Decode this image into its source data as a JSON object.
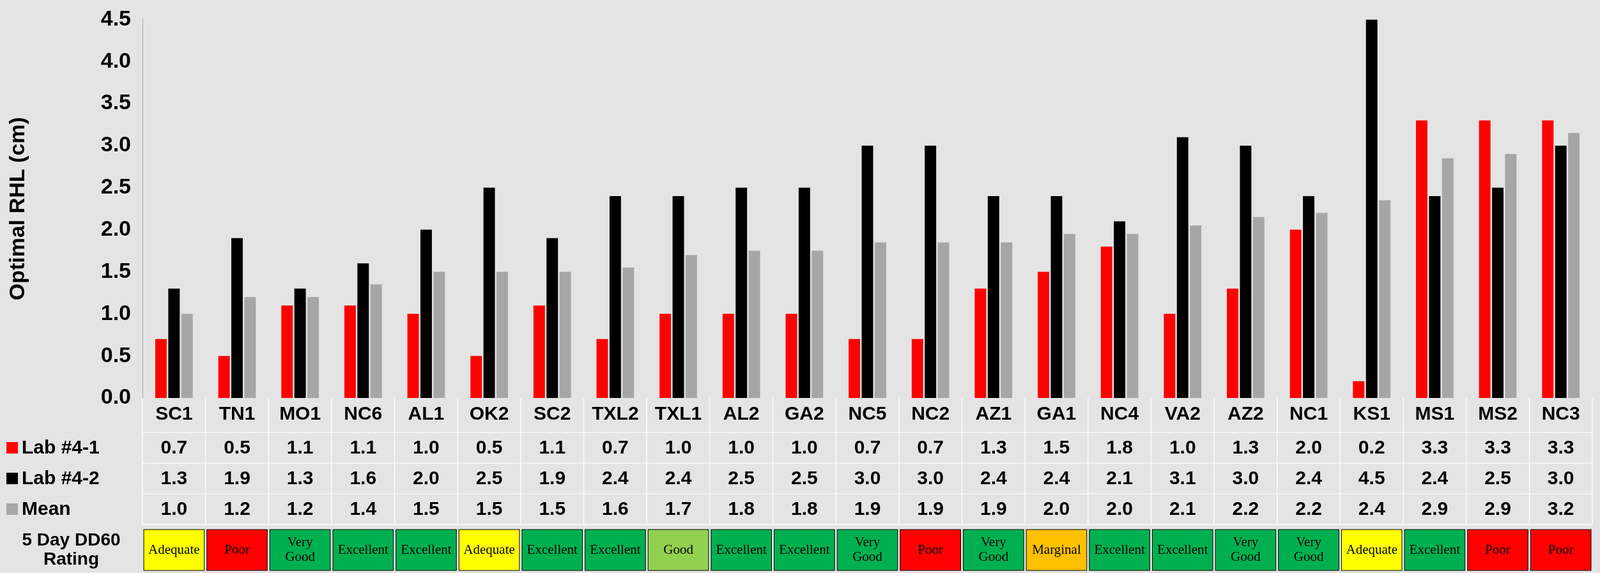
{
  "chart_data": {
    "type": "bar",
    "y_label": "Optimal RHL (cm)",
    "categories": [
      "SC1",
      "TN1",
      "MO1",
      "NC6",
      "AL1",
      "OK2",
      "SC2",
      "TXL2",
      "TXL1",
      "AL2",
      "GA2",
      "NC5",
      "NC2",
      "AZ1",
      "GA1",
      "NC4",
      "VA2",
      "AZ2",
      "NC1",
      "KS1",
      "MS1",
      "MS2",
      "NC3"
    ],
    "series": [
      {
        "name": "Lab #4-1",
        "color": "#ff0000",
        "values": [
          0.7,
          0.5,
          1.1,
          1.1,
          1.0,
          0.5,
          1.1,
          0.7,
          1.0,
          1.0,
          1.0,
          0.7,
          0.7,
          1.3,
          1.5,
          1.8,
          1.0,
          1.3,
          2.0,
          0.2,
          3.3,
          3.3,
          3.3
        ],
        "value_labels": [
          "0.7",
          "0.5",
          "1.1",
          "1.1",
          "1.0",
          "0.5",
          "1.1",
          "0.7",
          "1.0",
          "1.0",
          "1.0",
          "0.7",
          "0.7",
          "1.3",
          "1.5",
          "1.8",
          "1.0",
          "1.3",
          "2.0",
          "0.2",
          "3.3",
          "3.3",
          "3.3"
        ]
      },
      {
        "name": "Lab #4-2",
        "color": "#000000",
        "values": [
          1.3,
          1.9,
          1.3,
          1.6,
          2.0,
          2.5,
          1.9,
          2.4,
          2.4,
          2.5,
          2.5,
          3.0,
          3.0,
          2.4,
          2.4,
          2.1,
          3.1,
          3.0,
          2.4,
          4.5,
          2.4,
          2.5,
          3.0
        ],
        "value_labels": [
          "1.3",
          "1.9",
          "1.3",
          "1.6",
          "2.0",
          "2.5",
          "1.9",
          "2.4",
          "2.4",
          "2.5",
          "2.5",
          "3.0",
          "3.0",
          "2.4",
          "2.4",
          "2.1",
          "3.1",
          "3.0",
          "2.4",
          "4.5",
          "2.4",
          "2.5",
          "3.0"
        ]
      },
      {
        "name": "Mean",
        "color": "#a6a6a6",
        "values": [
          1.0,
          1.2,
          1.2,
          1.35,
          1.5,
          1.5,
          1.5,
          1.55,
          1.7,
          1.75,
          1.75,
          1.85,
          1.85,
          1.85,
          1.95,
          1.95,
          2.05,
          2.15,
          2.2,
          2.35,
          2.85,
          2.9,
          3.15
        ],
        "value_labels": [
          "1.0",
          "1.2",
          "1.2",
          "1.4",
          "1.5",
          "1.5",
          "1.5",
          "1.6",
          "1.7",
          "1.8",
          "1.8",
          "1.9",
          "1.9",
          "1.9",
          "2.0",
          "2.0",
          "2.1",
          "2.2",
          "2.2",
          "2.4",
          "2.9",
          "2.9",
          "3.2"
        ]
      }
    ],
    "ylim": [
      0,
      4.5
    ],
    "yticks": [
      {
        "value": 0,
        "label": "0.0"
      },
      {
        "value": 0.5,
        "label": "0.5"
      },
      {
        "value": 1,
        "label": "1.0"
      },
      {
        "value": 1.5,
        "label": "1.5"
      },
      {
        "value": 2,
        "label": "2.0"
      },
      {
        "value": 2.5,
        "label": "2.5"
      },
      {
        "value": 3,
        "label": "3.0"
      },
      {
        "value": 3.5,
        "label": "3.5"
      },
      {
        "value": 4,
        "label": "4.0"
      },
      {
        "value": 4.5,
        "label": "4.5"
      }
    ],
    "grid": false,
    "rating_row": {
      "label": "5 Day DD60 Rating",
      "values": [
        "Adequate",
        "Poor",
        "Very Good",
        "Excellent",
        "Excellent",
        "Adequate",
        "Excellent",
        "Excellent",
        "Good",
        "Excellent",
        "Excellent",
        "Very Good",
        "Poor",
        "Very Good",
        "Marginal",
        "Excellent",
        "Excellent",
        "Very Good",
        "Very Good",
        "Adequate",
        "Excellent",
        "Poor",
        "Poor"
      ],
      "colors": [
        "#ffff00",
        "#ff0000",
        "#00b050",
        "#00b050",
        "#00b050",
        "#ffff00",
        "#00b050",
        "#00b050",
        "#92d050",
        "#00b050",
        "#00b050",
        "#00b050",
        "#ff0000",
        "#00b050",
        "#ffc000",
        "#00b050",
        "#00b050",
        "#00b050",
        "#00b050",
        "#ffff00",
        "#00b050",
        "#ff0000",
        "#ff0000"
      ]
    }
  }
}
